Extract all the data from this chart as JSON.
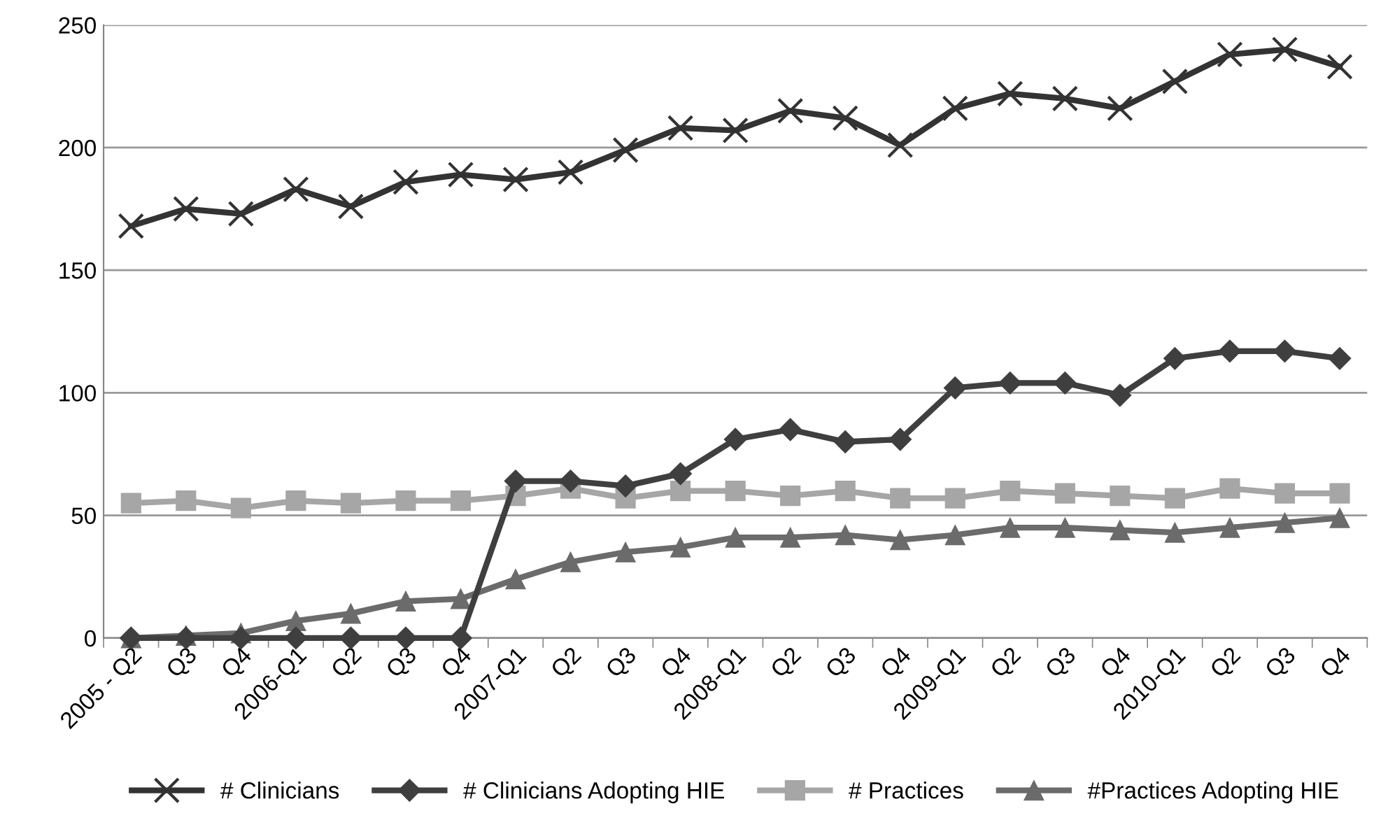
{
  "chart_data": {
    "type": "line",
    "categories": [
      "2005 - Q2",
      "Q3",
      "Q4",
      "2006-Q1",
      "Q2",
      "Q3",
      "Q4",
      "2007-Q1",
      "Q2",
      "Q3",
      "Q4",
      "2008-Q1",
      "Q2",
      "Q3",
      "Q4",
      "2009-Q1",
      "Q2",
      "Q3",
      "Q4",
      "2010-Q1",
      "Q2",
      "Q3",
      "Q4"
    ],
    "series": [
      {
        "name": "# Clinicians",
        "color": "#333333",
        "marker": "cross",
        "values": [
          168,
          175,
          173,
          183,
          176,
          186,
          189,
          187,
          190,
          199,
          208,
          207,
          215,
          212,
          201,
          216,
          222,
          220,
          216,
          227,
          238,
          240,
          233
        ]
      },
      {
        "name": "# Clinicians Adopting HIE",
        "color": "#3f3f3f",
        "marker": "diamond",
        "values": [
          0,
          0,
          0,
          0,
          0,
          0,
          0,
          64,
          64,
          62,
          67,
          81,
          85,
          80,
          81,
          102,
          104,
          104,
          99,
          114,
          117,
          117,
          114
        ]
      },
      {
        "name": "# Practices",
        "color": "#a6a6a6",
        "marker": "square",
        "values": [
          55,
          56,
          53,
          56,
          55,
          56,
          56,
          58,
          61,
          57,
          60,
          60,
          58,
          60,
          57,
          57,
          60,
          59,
          58,
          57,
          61,
          59,
          59
        ]
      },
      {
        "name": "#Practices Adopting HIE",
        "color": "#6b6b6b",
        "marker": "triangle",
        "values": [
          0,
          1,
          2,
          7,
          10,
          15,
          16,
          24,
          31,
          35,
          37,
          41,
          41,
          42,
          40,
          42,
          45,
          45,
          44,
          43,
          45,
          47,
          49
        ]
      }
    ],
    "ylim": [
      0,
      250
    ],
    "yticks": [
      0,
      50,
      100,
      150,
      200,
      250
    ],
    "grid": "y",
    "legend": "bottom",
    "line_style": "solid"
  }
}
